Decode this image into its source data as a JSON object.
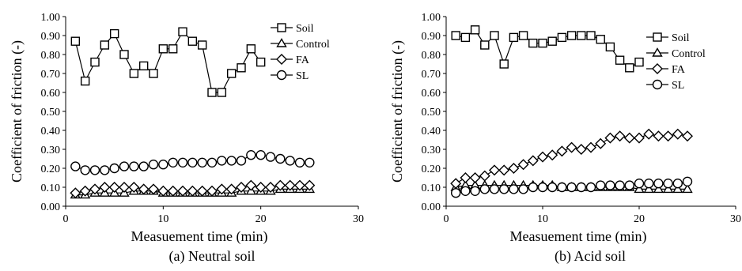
{
  "chart_data": [
    {
      "type": "scatter",
      "caption": "(a) Neutral soil",
      "xlabel": "Measuement time (min)",
      "ylabel": "Coefficient of friction (-)",
      "xlim": [
        0,
        30
      ],
      "ylim": [
        0,
        1.0
      ],
      "xticks": [
        "0",
        "10",
        "20",
        "30"
      ],
      "yticks": [
        "0.00",
        "0.10",
        "0.20",
        "0.30",
        "0.40",
        "0.50",
        "0.60",
        "0.70",
        "0.80",
        "0.90",
        "1.00"
      ],
      "legend_position": "top-right",
      "grid": false,
      "series": [
        {
          "name": "Soil",
          "marker": "square",
          "connected": true,
          "x": [
            1,
            2,
            3,
            4,
            5,
            6,
            7,
            8,
            9,
            10,
            11,
            12,
            13,
            14,
            15,
            16,
            17,
            18,
            19,
            20
          ],
          "y": [
            0.87,
            0.66,
            0.76,
            0.85,
            0.91,
            0.8,
            0.7,
            0.74,
            0.7,
            0.83,
            0.83,
            0.92,
            0.87,
            0.85,
            0.6,
            0.6,
            0.7,
            0.73,
            0.83,
            0.76
          ]
        },
        {
          "name": "Control",
          "marker": "triangle",
          "connected": true,
          "x": [
            1,
            2,
            3,
            4,
            5,
            6,
            7,
            8,
            9,
            10,
            11,
            12,
            13,
            14,
            15,
            16,
            17,
            18,
            19,
            20,
            21,
            22,
            23,
            24,
            25
          ],
          "y": [
            0.06,
            0.06,
            0.07,
            0.07,
            0.07,
            0.07,
            0.08,
            0.08,
            0.08,
            0.07,
            0.07,
            0.07,
            0.07,
            0.07,
            0.07,
            0.07,
            0.07,
            0.08,
            0.08,
            0.08,
            0.08,
            0.09,
            0.09,
            0.09,
            0.09
          ]
        },
        {
          "name": "FA",
          "marker": "diamond",
          "connected": true,
          "x": [
            1,
            2,
            3,
            4,
            5,
            6,
            7,
            8,
            9,
            10,
            11,
            12,
            13,
            14,
            15,
            16,
            17,
            18,
            19,
            20,
            21,
            22,
            23,
            24,
            25
          ],
          "y": [
            0.07,
            0.08,
            0.09,
            0.1,
            0.1,
            0.1,
            0.1,
            0.09,
            0.09,
            0.08,
            0.08,
            0.08,
            0.08,
            0.08,
            0.08,
            0.09,
            0.09,
            0.1,
            0.11,
            0.1,
            0.1,
            0.11,
            0.11,
            0.11,
            0.11
          ]
        },
        {
          "name": "SL",
          "marker": "circle",
          "connected": true,
          "x": [
            1,
            2,
            3,
            4,
            5,
            6,
            7,
            8,
            9,
            10,
            11,
            12,
            13,
            14,
            15,
            16,
            17,
            18,
            19,
            20,
            21,
            22,
            23,
            24,
            25
          ],
          "y": [
            0.21,
            0.19,
            0.19,
            0.19,
            0.2,
            0.21,
            0.21,
            0.21,
            0.22,
            0.22,
            0.23,
            0.23,
            0.23,
            0.23,
            0.23,
            0.24,
            0.24,
            0.24,
            0.27,
            0.27,
            0.26,
            0.25,
            0.24,
            0.23,
            0.23
          ]
        }
      ]
    },
    {
      "type": "scatter",
      "caption": "(b) Acid soil",
      "xlabel": "Measuement time (min)",
      "ylabel": "Coefficient of friction (-)",
      "xlim": [
        0,
        30
      ],
      "ylim": [
        0,
        1.0
      ],
      "xticks": [
        "0",
        "10",
        "20",
        "30"
      ],
      "yticks": [
        "0.00",
        "0.10",
        "0.20",
        "0.30",
        "0.40",
        "0.50",
        "0.60",
        "0.70",
        "0.80",
        "0.90",
        "1.00"
      ],
      "legend_position": "top-right",
      "grid": false,
      "series": [
        {
          "name": "Soil",
          "marker": "square",
          "connected": true,
          "x": [
            1,
            2,
            3,
            4,
            5,
            6,
            7,
            8,
            9,
            10,
            11,
            12,
            13,
            14,
            15,
            16,
            17,
            18,
            19,
            20
          ],
          "y": [
            0.9,
            0.89,
            0.93,
            0.85,
            0.9,
            0.75,
            0.89,
            0.9,
            0.86,
            0.86,
            0.87,
            0.89,
            0.9,
            0.9,
            0.9,
            0.88,
            0.84,
            0.77,
            0.73,
            0.76
          ]
        },
        {
          "name": "Control",
          "marker": "triangle",
          "connected": true,
          "x": [
            1,
            2,
            3,
            4,
            5,
            6,
            7,
            8,
            9,
            10,
            11,
            12,
            13,
            14,
            15,
            16,
            17,
            18,
            19,
            20,
            21,
            22,
            23,
            24,
            25
          ],
          "y": [
            0.1,
            0.11,
            0.11,
            0.11,
            0.11,
            0.11,
            0.11,
            0.11,
            0.11,
            0.11,
            0.11,
            0.1,
            0.1,
            0.1,
            0.1,
            0.1,
            0.1,
            0.1,
            0.1,
            0.09,
            0.09,
            0.09,
            0.09,
            0.09,
            0.09
          ]
        },
        {
          "name": "FA",
          "marker": "diamond",
          "connected": true,
          "x": [
            1,
            2,
            3,
            4,
            5,
            6,
            7,
            8,
            9,
            10,
            11,
            12,
            13,
            14,
            15,
            16,
            17,
            18,
            19,
            20,
            21,
            22,
            23,
            24,
            25
          ],
          "y": [
            0.12,
            0.15,
            0.15,
            0.16,
            0.19,
            0.19,
            0.2,
            0.22,
            0.24,
            0.26,
            0.27,
            0.29,
            0.31,
            0.3,
            0.31,
            0.33,
            0.36,
            0.37,
            0.36,
            0.36,
            0.38,
            0.37,
            0.37,
            0.38,
            0.37
          ]
        },
        {
          "name": "SL",
          "marker": "circle",
          "connected": true,
          "x": [
            1,
            2,
            3,
            4,
            5,
            6,
            7,
            8,
            9,
            10,
            11,
            12,
            13,
            14,
            15,
            16,
            17,
            18,
            19,
            20,
            21,
            22,
            23,
            24,
            25
          ],
          "y": [
            0.07,
            0.08,
            0.08,
            0.09,
            0.09,
            0.09,
            0.09,
            0.09,
            0.1,
            0.1,
            0.1,
            0.1,
            0.1,
            0.1,
            0.1,
            0.11,
            0.11,
            0.11,
            0.11,
            0.12,
            0.12,
            0.12,
            0.12,
            0.12,
            0.13
          ]
        }
      ]
    }
  ]
}
